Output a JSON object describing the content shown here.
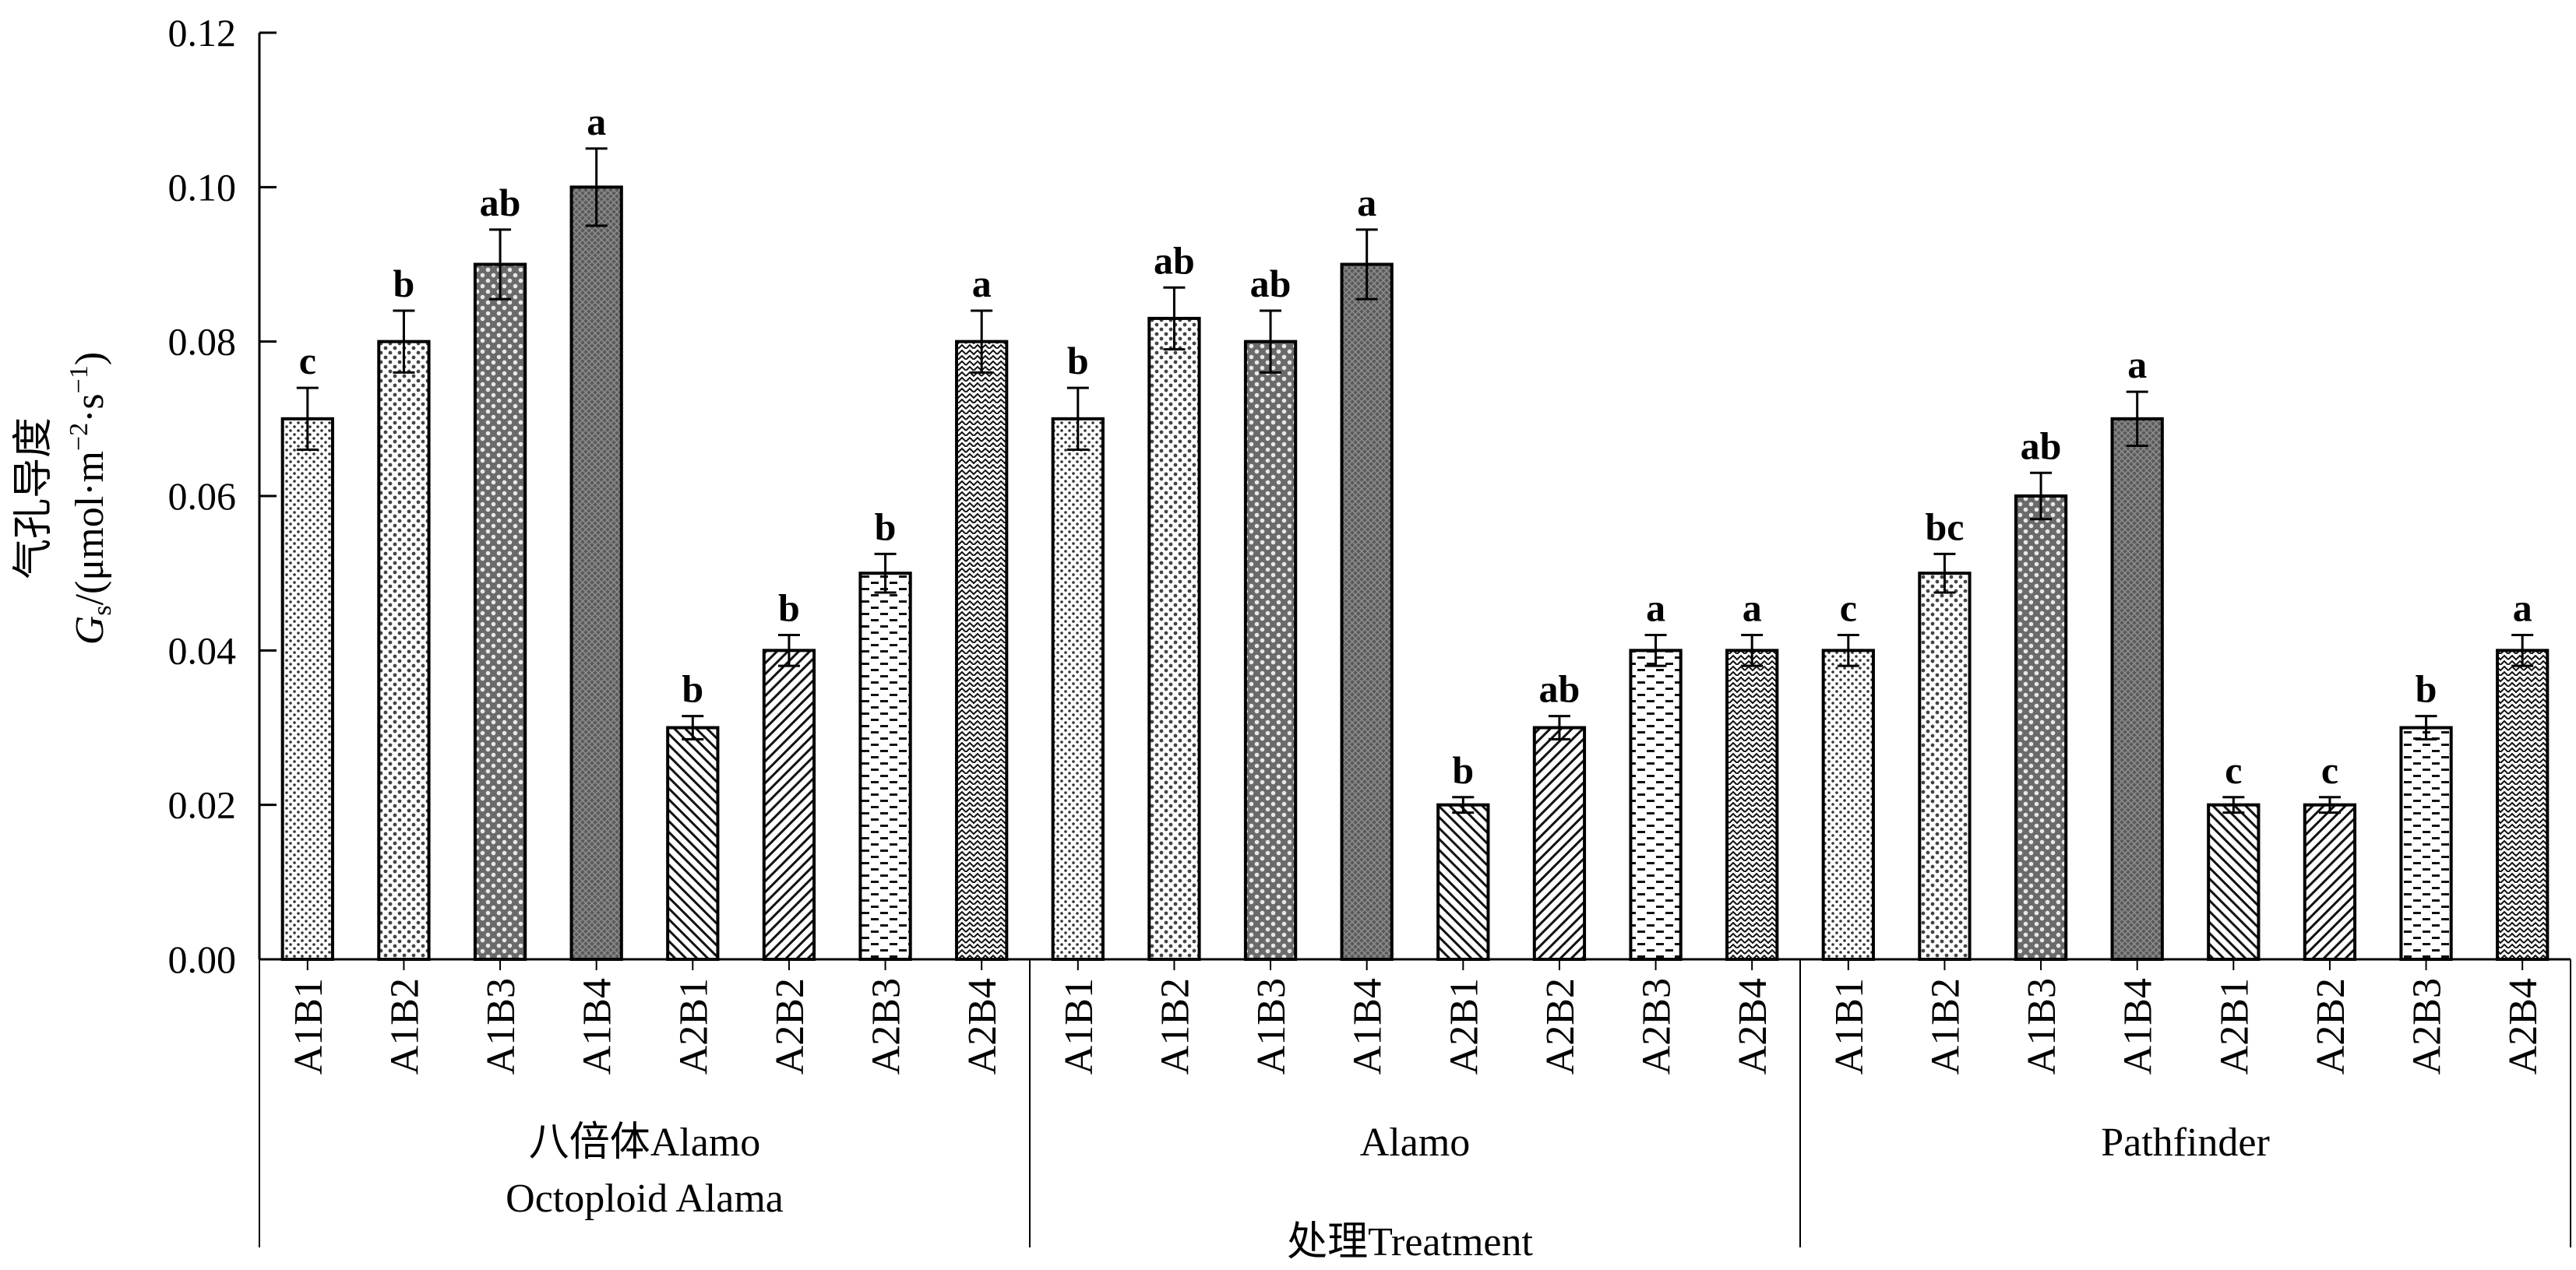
{
  "chart_data": {
    "type": "bar",
    "ylabel": {
      "line1": "气孔导度",
      "symbol": "G",
      "subscript": "s",
      "units": "/(μmol·m",
      "exp1": "−2",
      "mid": "·s",
      "exp2": "−1",
      "close": ")"
    },
    "xlabel": "处理Treatment",
    "ylim": [
      0,
      0.12
    ],
    "yticks": [
      "0.00",
      "0.02",
      "0.04",
      "0.06",
      "0.08",
      "0.10",
      "0.12"
    ],
    "groups": [
      {
        "name_lines": [
          "八倍体Alamo",
          "Octoploid Alama"
        ],
        "bars": [
          {
            "label": "A1B1",
            "value": 0.07,
            "error": 0.004,
            "sig": "c",
            "pattern": "dots-fine"
          },
          {
            "label": "A1B2",
            "value": 0.08,
            "error": 0.004,
            "sig": "b",
            "pattern": "dots-medium"
          },
          {
            "label": "A1B3",
            "value": 0.09,
            "error": 0.0045,
            "sig": "ab",
            "pattern": "dots-dense"
          },
          {
            "label": "A1B4",
            "value": 0.1,
            "error": 0.005,
            "sig": "a",
            "pattern": "dark-cross"
          },
          {
            "label": "A2B1",
            "value": 0.03,
            "error": 0.0015,
            "sig": "b",
            "pattern": "diag-back"
          },
          {
            "label": "A2B2",
            "value": 0.04,
            "error": 0.002,
            "sig": "b",
            "pattern": "diag-fwd"
          },
          {
            "label": "A2B3",
            "value": 0.05,
            "error": 0.0025,
            "sig": "b",
            "pattern": "dashes"
          },
          {
            "label": "A2B4",
            "value": 0.08,
            "error": 0.004,
            "sig": "a",
            "pattern": "waves"
          }
        ]
      },
      {
        "name_lines": [
          "Alamo"
        ],
        "bars": [
          {
            "label": "A1B1",
            "value": 0.07,
            "error": 0.004,
            "sig": "b",
            "pattern": "dots-fine"
          },
          {
            "label": "A1B2",
            "value": 0.083,
            "error": 0.004,
            "sig": "ab",
            "pattern": "dots-medium"
          },
          {
            "label": "A1B3",
            "value": 0.08,
            "error": 0.004,
            "sig": "ab",
            "pattern": "dots-dense"
          },
          {
            "label": "A1B4",
            "value": 0.09,
            "error": 0.0045,
            "sig": "a",
            "pattern": "dark-cross"
          },
          {
            "label": "A2B1",
            "value": 0.02,
            "error": 0.001,
            "sig": "b",
            "pattern": "diag-back"
          },
          {
            "label": "A2B2",
            "value": 0.03,
            "error": 0.0015,
            "sig": "ab",
            "pattern": "diag-fwd"
          },
          {
            "label": "A2B3",
            "value": 0.04,
            "error": 0.002,
            "sig": "a",
            "pattern": "dashes"
          },
          {
            "label": "A2B4",
            "value": 0.04,
            "error": 0.002,
            "sig": "a",
            "pattern": "waves"
          }
        ]
      },
      {
        "name_lines": [
          "Pathfinder"
        ],
        "bars": [
          {
            "label": "A1B1",
            "value": 0.04,
            "error": 0.002,
            "sig": "c",
            "pattern": "dots-fine"
          },
          {
            "label": "A1B2",
            "value": 0.05,
            "error": 0.0025,
            "sig": "bc",
            "pattern": "dots-medium"
          },
          {
            "label": "A1B3",
            "value": 0.06,
            "error": 0.003,
            "sig": "ab",
            "pattern": "dots-dense"
          },
          {
            "label": "A1B4",
            "value": 0.07,
            "error": 0.0035,
            "sig": "a",
            "pattern": "dark-cross"
          },
          {
            "label": "A2B1",
            "value": 0.02,
            "error": 0.001,
            "sig": "c",
            "pattern": "diag-back"
          },
          {
            "label": "A2B2",
            "value": 0.02,
            "error": 0.001,
            "sig": "c",
            "pattern": "diag-fwd"
          },
          {
            "label": "A2B3",
            "value": 0.03,
            "error": 0.0015,
            "sig": "b",
            "pattern": "dashes"
          },
          {
            "label": "A2B4",
            "value": 0.04,
            "error": 0.002,
            "sig": "a",
            "pattern": "waves"
          }
        ]
      }
    ]
  }
}
